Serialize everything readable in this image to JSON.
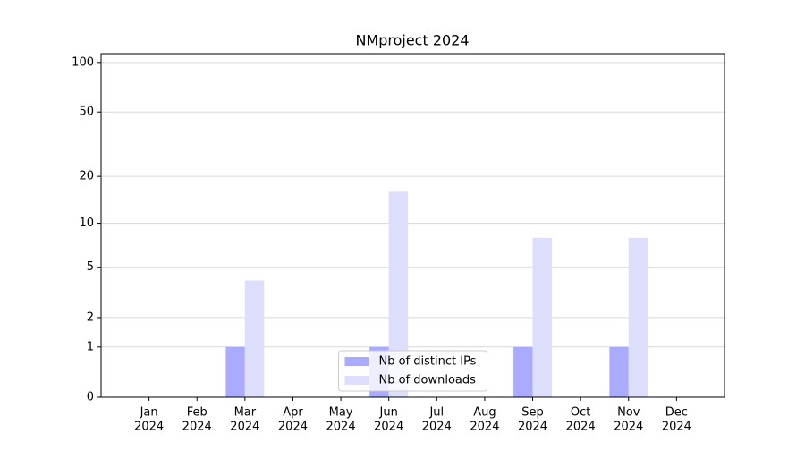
{
  "chart_data": {
    "type": "bar",
    "title": "NMproject 2024",
    "categories": [
      [
        "Jan",
        "2024"
      ],
      [
        "Feb",
        "2024"
      ],
      [
        "Mar",
        "2024"
      ],
      [
        "Apr",
        "2024"
      ],
      [
        "May",
        "2024"
      ],
      [
        "Jun",
        "2024"
      ],
      [
        "Jul",
        "2024"
      ],
      [
        "Aug",
        "2024"
      ],
      [
        "Sep",
        "2024"
      ],
      [
        "Oct",
        "2024"
      ],
      [
        "Nov",
        "2024"
      ],
      [
        "Dec",
        "2024"
      ]
    ],
    "series": [
      {
        "name": "Nb of distinct IPs",
        "color": "#aaaaff",
        "values": [
          0,
          0,
          1,
          0,
          0,
          1,
          0,
          0,
          1,
          0,
          1,
          0
        ]
      },
      {
        "name": "Nb of downloads",
        "color": "#ddddfc",
        "values": [
          0,
          0,
          4,
          0,
          0,
          16,
          0,
          0,
          8,
          0,
          8,
          0
        ]
      }
    ],
    "yscale": "log1p",
    "ylim": [
      0,
      113
    ],
    "yticks": [
      0,
      1,
      2,
      5,
      10,
      20,
      50,
      100
    ],
    "grid": true,
    "legend": "lower center"
  }
}
